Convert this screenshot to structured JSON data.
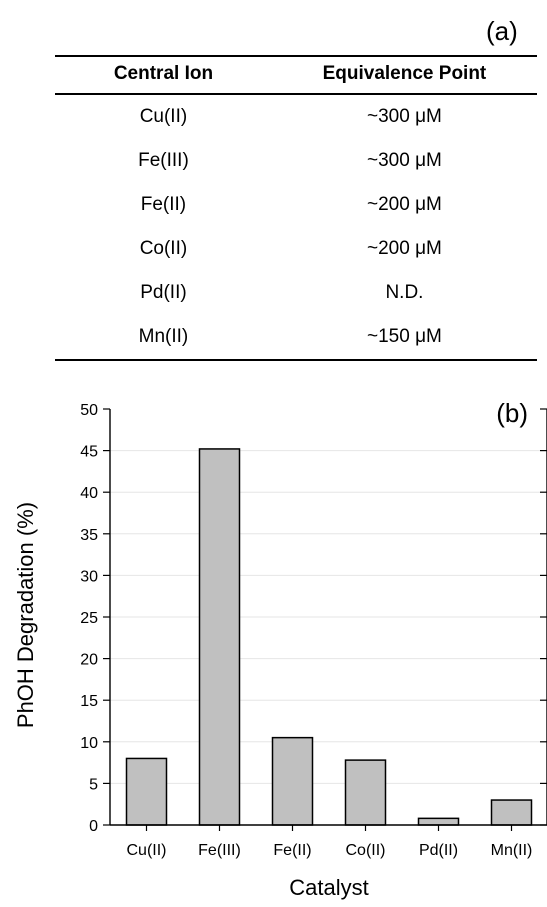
{
  "panel_a": {
    "label": "(a)",
    "headers": [
      "Central Ion",
      "Equivalence Point"
    ],
    "rows": [
      [
        "Cu(II)",
        "~300 μM"
      ],
      [
        "Fe(III)",
        "~300 μM"
      ],
      [
        "Fe(II)",
        "~200 μM"
      ],
      [
        "Co(II)",
        "~200 μM"
      ],
      [
        "Pd(II)",
        "N.D."
      ],
      [
        "Mn(II)",
        "~150 μM"
      ]
    ]
  },
  "chart_data": {
    "type": "bar",
    "panel_label": "(b)",
    "categories": [
      "Cu(II)",
      "Fe(III)",
      "Fe(II)",
      "Co(II)",
      "Pd(II)",
      "Mn(II)"
    ],
    "values": [
      8.0,
      45.2,
      10.5,
      7.8,
      0.8,
      3.0
    ],
    "xlabel": "Catalyst",
    "ylabel": "PhOH Degradation  (%)",
    "ylim": [
      0,
      50
    ],
    "yticks": [
      0,
      5,
      10,
      15,
      20,
      25,
      30,
      35,
      40,
      45,
      50
    ],
    "grid": true,
    "bar_color": "#c0c0c0"
  }
}
